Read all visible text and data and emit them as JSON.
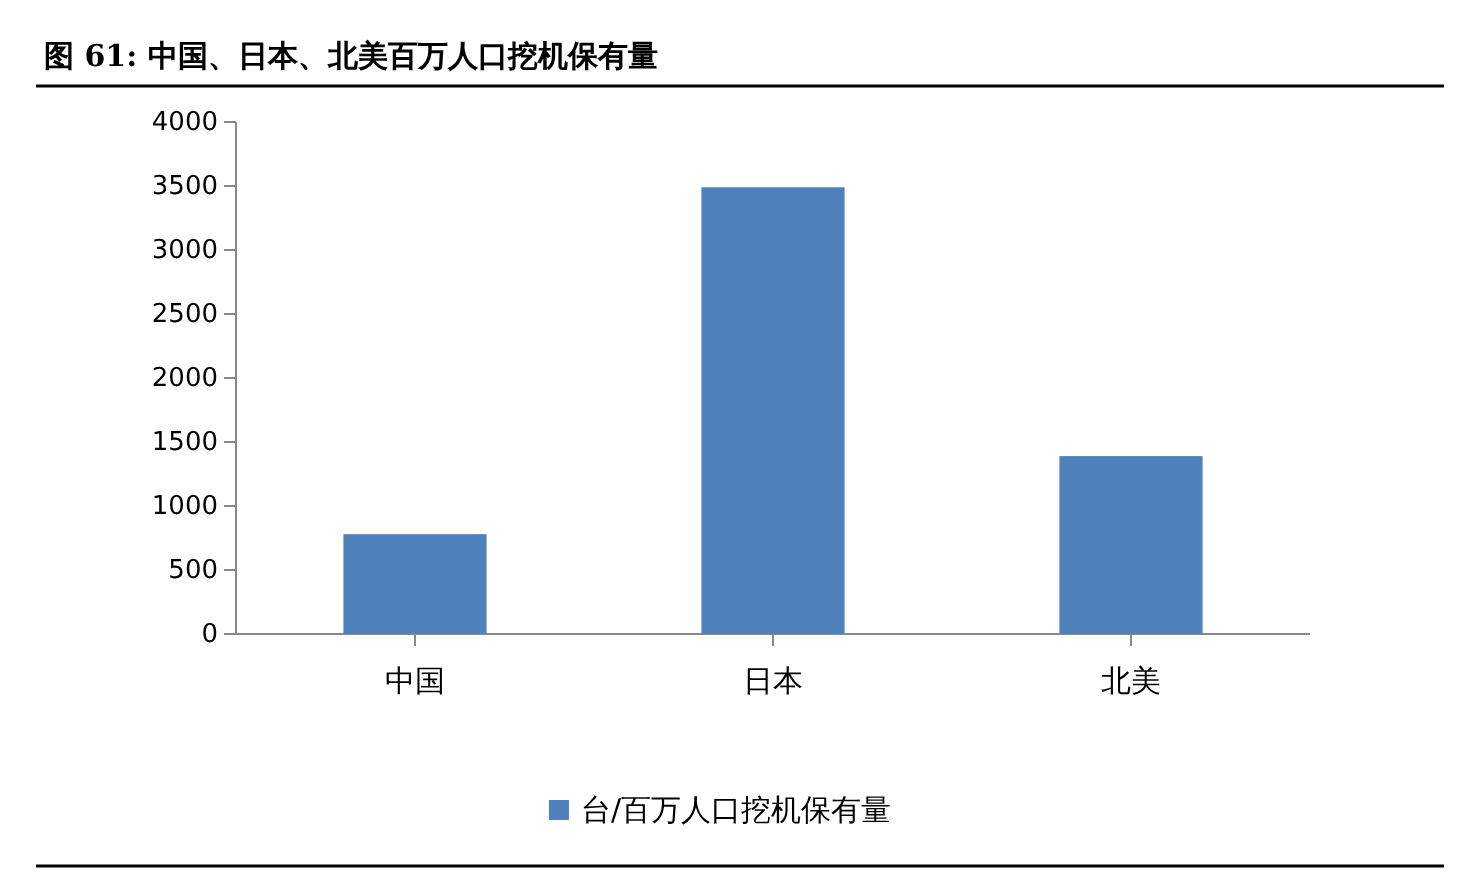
{
  "chart_data": {
    "type": "bar",
    "title": "图 61: 中国、日本、北美百万人口挖机保有量",
    "categories": [
      "中国",
      "日本",
      "北美"
    ],
    "series": [
      {
        "name": "台/百万人口挖机保有量",
        "color": "#4f81bd",
        "values": [
          780,
          3490,
          1390
        ]
      }
    ],
    "ylim": [
      0,
      4000
    ],
    "yticks": [
      0,
      500,
      1000,
      1500,
      2000,
      2500,
      3000,
      3500,
      4000
    ],
    "grid": false,
    "legend": "bottom"
  }
}
